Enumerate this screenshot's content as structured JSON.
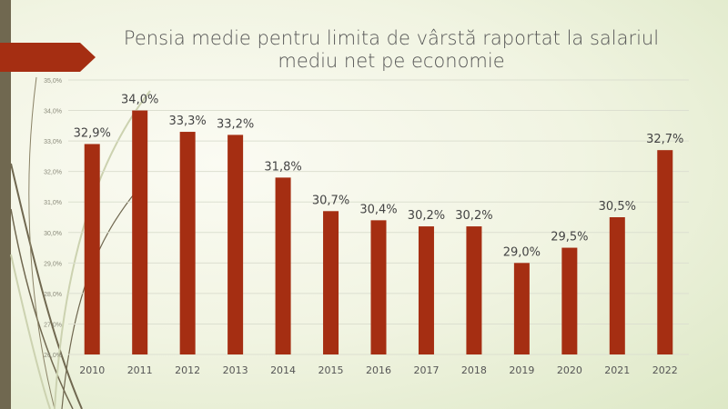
{
  "chart_data": {
    "type": "bar",
    "title": "Pensia medie pentru limita de vârstă raportat la salariul mediu net pe economie",
    "title_lines": [
      "Pensia medie pentru limita de vârstă raportat la salariul",
      "mediu net pe economie"
    ],
    "categories": [
      "2010",
      "2011",
      "2012",
      "2013",
      "2014",
      "2015",
      "2016",
      "2017",
      "2018",
      "2019",
      "2020",
      "2021",
      "2022"
    ],
    "values": [
      32.9,
      34.0,
      33.3,
      33.2,
      31.8,
      30.7,
      30.4,
      30.2,
      30.2,
      29.0,
      29.5,
      30.5,
      32.7
    ],
    "data_labels": [
      "32,9%",
      "34,0%",
      "33,3%",
      "33,2%",
      "31,8%",
      "30,7%",
      "30,4%",
      "30,2%",
      "30,2%",
      "29,0%",
      "29,5%",
      "30,5%",
      "32,7%"
    ],
    "ylim": [
      26,
      35
    ],
    "yticks": [
      "26,0%",
      "27,0%",
      "28,0%",
      "29,0%",
      "30,0%",
      "31,0%",
      "32,0%",
      "33,0%",
      "34,0%",
      "35,0%"
    ],
    "xlabel": "",
    "ylabel": "",
    "grid": true,
    "bar_color": "#a52e12"
  }
}
